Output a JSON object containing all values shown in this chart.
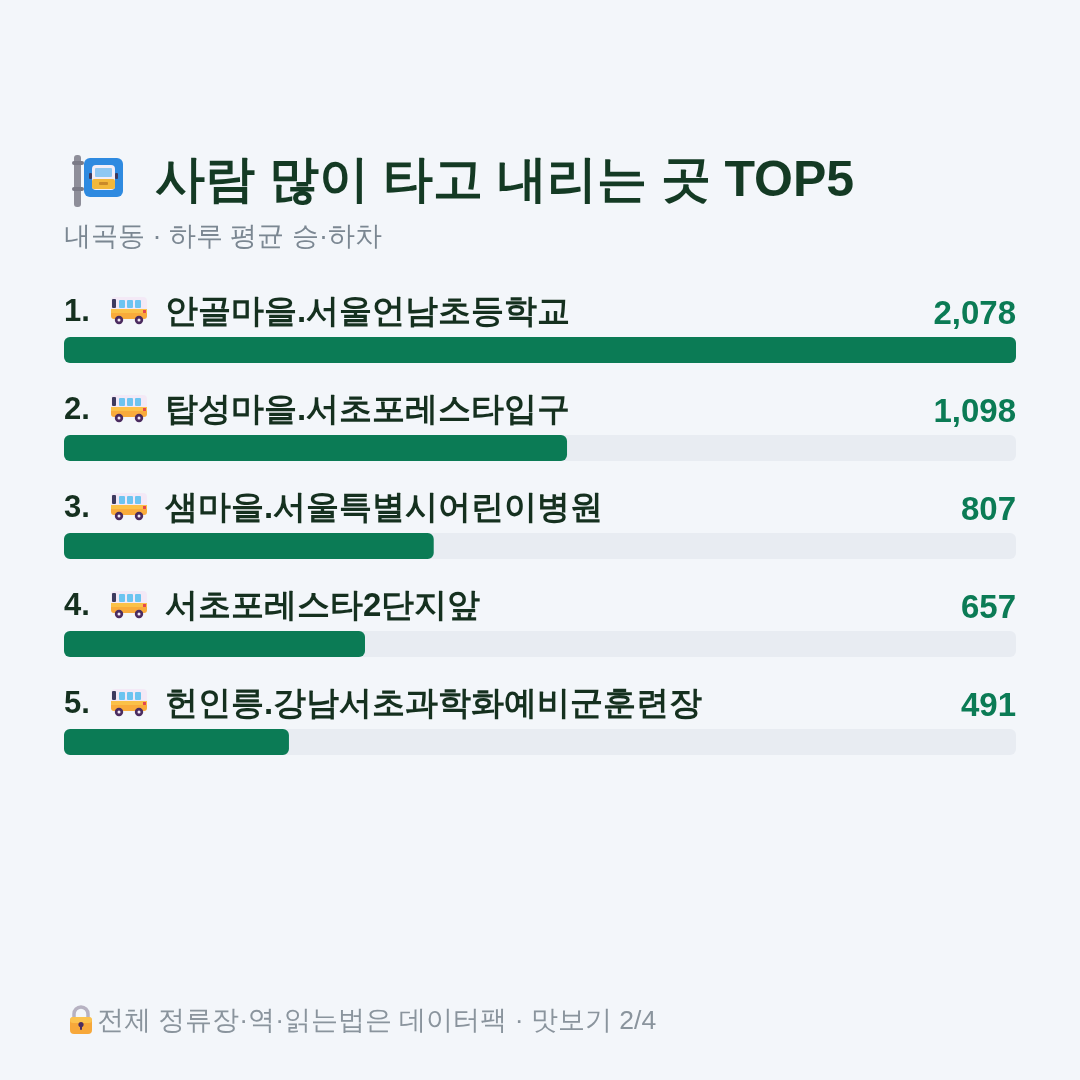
{
  "chart_data": {
    "type": "bar",
    "orientation": "horizontal",
    "title": "사람 많이 타고 내리는 곳 TOP5",
    "subtitle": "내곡동 · 하루 평균 승·하차",
    "categories": [
      "1. 안골마을.서울언남초등학교",
      "2. 탑성마을.서초포레스타입구",
      "3. 샘마을.서울특별시어린이병원",
      "4. 서초포레스타2단지앞",
      "5. 헌인릉.강남서초과학화예비군훈련장"
    ],
    "values": [
      2078,
      1098,
      807,
      657,
      491
    ],
    "value_labels": [
      "2,078",
      "1,098",
      "807",
      "657",
      "491"
    ],
    "color": "#0b7b55",
    "annotations": [
      "전체 정류장·역·읽는법은 데이터팩 · 맛보기 2/4"
    ]
  }
}
